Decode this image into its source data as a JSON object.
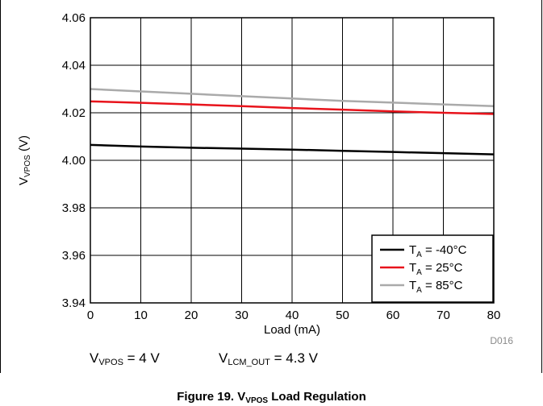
{
  "chart_data": {
    "type": "line",
    "title": "",
    "xlabel": "Load (mA)",
    "ylabel": {
      "main": "V",
      "sub": "VPOS",
      "unit": " (V)"
    },
    "xlim": [
      0,
      80
    ],
    "ylim": [
      3.94,
      4.06
    ],
    "xticks": [
      0,
      10,
      20,
      30,
      40,
      50,
      60,
      70,
      80
    ],
    "yticks": [
      "3.94",
      "3.96",
      "3.98",
      "4.00",
      "4.02",
      "4.04",
      "4.06"
    ],
    "grid": true,
    "legend_position": "bottom-right",
    "series": [
      {
        "name": {
          "main": "T",
          "sub": "A",
          "rest": " = -40°C"
        },
        "color": "#000000",
        "x": [
          0,
          10,
          20,
          30,
          40,
          50,
          60,
          70,
          80
        ],
        "y": [
          4.0065,
          4.0058,
          4.0053,
          4.0049,
          4.0045,
          4.004,
          4.0035,
          4.003,
          4.0025
        ]
      },
      {
        "name": {
          "main": "T",
          "sub": "A",
          "rest": " = 25°C"
        },
        "color": "#e8131b",
        "x": [
          0,
          10,
          20,
          30,
          40,
          50,
          60,
          70,
          80
        ],
        "y": [
          4.0248,
          4.0242,
          4.0235,
          4.0228,
          4.022,
          4.0213,
          4.0206,
          4.02,
          4.0195
        ]
      },
      {
        "name": {
          "main": "T",
          "sub": "A",
          "rest": " = 85°C"
        },
        "color": "#aaaaaa",
        "x": [
          0,
          10,
          20,
          30,
          40,
          50,
          60,
          70,
          80
        ],
        "y": [
          4.03,
          4.029,
          4.028,
          4.027,
          4.026,
          4.025,
          4.0243,
          4.0235,
          4.0228
        ]
      }
    ]
  },
  "figure_id": "D016",
  "conditions": [
    {
      "main": "V",
      "sub": "VPOS",
      "rest": " = 4 V"
    },
    {
      "main": "V",
      "sub": "LCM_OUT",
      "rest": " = 4.3 V"
    }
  ],
  "caption": {
    "prefix": "Figure 19. V",
    "sub": "VPOS",
    "suffix": " Load Regulation"
  }
}
